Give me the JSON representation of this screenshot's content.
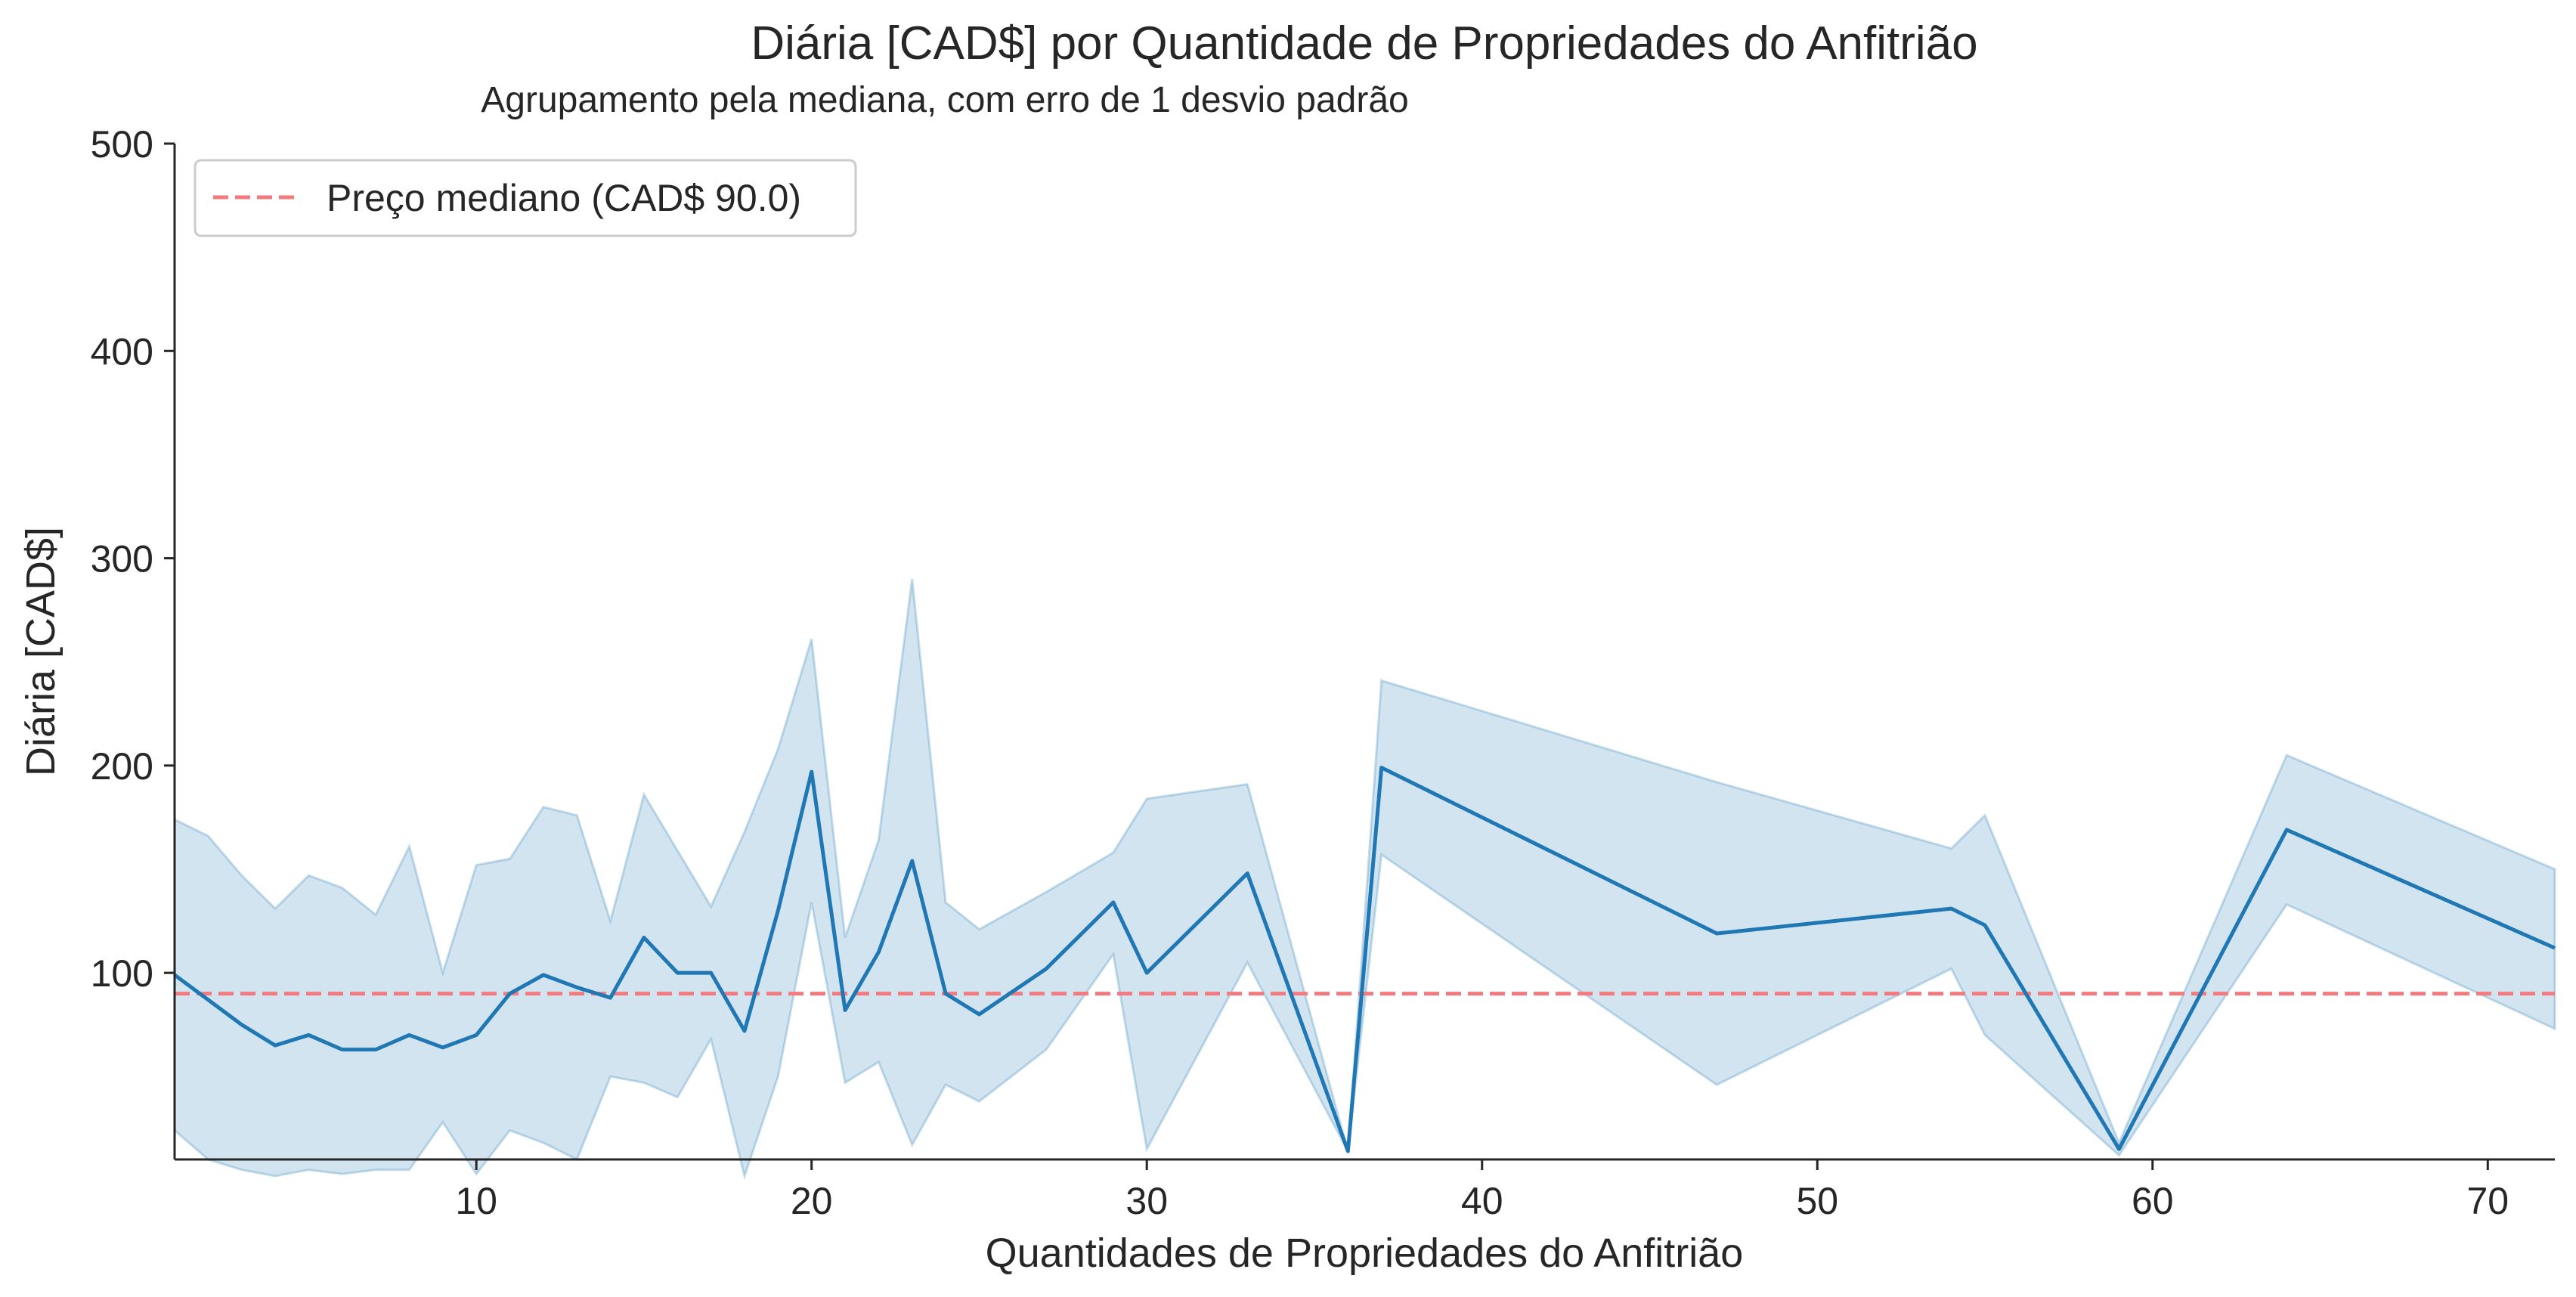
{
  "chart_data": {
    "type": "line",
    "title": "Diária [CAD$] por Quantidade de Propriedades do Anfitrião",
    "subtitle": "Agrupamento pela mediana, com erro de 1 desvio padrão",
    "xlabel": "Quantidades de Propriedades do Anfitrião",
    "ylabel": "Diária [CAD$]",
    "xlim": [
      1,
      72
    ],
    "ylim": [
      10,
      500
    ],
    "xticks": [
      10,
      20,
      30,
      40,
      50,
      60,
      70
    ],
    "yticks": [
      100,
      200,
      300,
      400,
      500
    ],
    "grid": false,
    "legend_position": "top-left",
    "colors": {
      "line": "#1f77b4",
      "band": "#1f77b4",
      "median": "#f27b7f",
      "axis": "#262626"
    },
    "series": [
      {
        "values": [
          {
            "x": 1,
            "y": 99,
            "lo": 24,
            "hi": 174
          },
          {
            "x": 2,
            "y": 87,
            "lo": 10,
            "hi": 166
          },
          {
            "x": 3,
            "y": 75,
            "lo": 5,
            "hi": 147
          },
          {
            "x": 4,
            "y": 65,
            "lo": 2,
            "hi": 131
          },
          {
            "x": 5,
            "y": 70,
            "lo": 5,
            "hi": 147
          },
          {
            "x": 6,
            "y": 63,
            "lo": 3,
            "hi": 141
          },
          {
            "x": 7,
            "y": 63,
            "lo": 5,
            "hi": 128
          },
          {
            "x": 8,
            "y": 70,
            "lo": 5,
            "hi": 161
          },
          {
            "x": 9,
            "y": 64,
            "lo": 28,
            "hi": 100
          },
          {
            "x": 10,
            "y": 70,
            "lo": 3,
            "hi": 152
          },
          {
            "x": 11,
            "y": 90,
            "lo": 24,
            "hi": 155
          },
          {
            "x": 12,
            "y": 99,
            "lo": 18,
            "hi": 180
          },
          {
            "x": 13,
            "y": 93,
            "lo": 10,
            "hi": 176
          },
          {
            "x": 14,
            "y": 88,
            "lo": 50,
            "hi": 125
          },
          {
            "x": 15,
            "y": 117,
            "lo": 47,
            "hi": 186
          },
          {
            "x": 16,
            "y": 100,
            "lo": 40,
            "hi": 159
          },
          {
            "x": 17,
            "y": 100,
            "lo": 68,
            "hi": 132
          },
          {
            "x": 18,
            "y": 72,
            "lo": 2,
            "hi": 168
          },
          {
            "x": 19,
            "y": 130,
            "lo": 50,
            "hi": 208
          },
          {
            "x": 20,
            "y": 197,
            "lo": 134,
            "hi": 261
          },
          {
            "x": 21,
            "y": 82,
            "lo": 47,
            "hi": 117
          },
          {
            "x": 22,
            "y": 110,
            "lo": 57,
            "hi": 164
          },
          {
            "x": 23,
            "y": 154,
            "lo": 17,
            "hi": 290
          },
          {
            "x": 24,
            "y": 90,
            "lo": 46,
            "hi": 134
          },
          {
            "x": 25,
            "y": 80,
            "lo": 38,
            "hi": 121
          },
          {
            "x": 27,
            "y": 102,
            "lo": 63,
            "hi": 139
          },
          {
            "x": 29,
            "y": 134,
            "lo": 109,
            "hi": 158
          },
          {
            "x": 30,
            "y": 100,
            "lo": 15,
            "hi": 184
          },
          {
            "x": 33,
            "y": 148,
            "lo": 105,
            "hi": 191
          },
          {
            "x": 36,
            "y": 14,
            "lo": 14,
            "hi": 14
          },
          {
            "x": 37,
            "y": 199,
            "lo": 157,
            "hi": 241
          },
          {
            "x": 47,
            "y": 119,
            "lo": 46,
            "hi": 192
          },
          {
            "x": 54,
            "y": 131,
            "lo": 102,
            "hi": 160
          },
          {
            "x": 55,
            "y": 123,
            "lo": 70,
            "hi": 176
          },
          {
            "x": 59,
            "y": 15,
            "lo": 12,
            "hi": 18
          },
          {
            "x": 64,
            "y": 169,
            "lo": 133,
            "hi": 205
          },
          {
            "x": 72,
            "y": 112,
            "lo": 73,
            "hi": 150
          }
        ]
      }
    ],
    "median_line": {
      "value": 90,
      "label": "Preço mediano (CAD$ 90.0)"
    }
  }
}
